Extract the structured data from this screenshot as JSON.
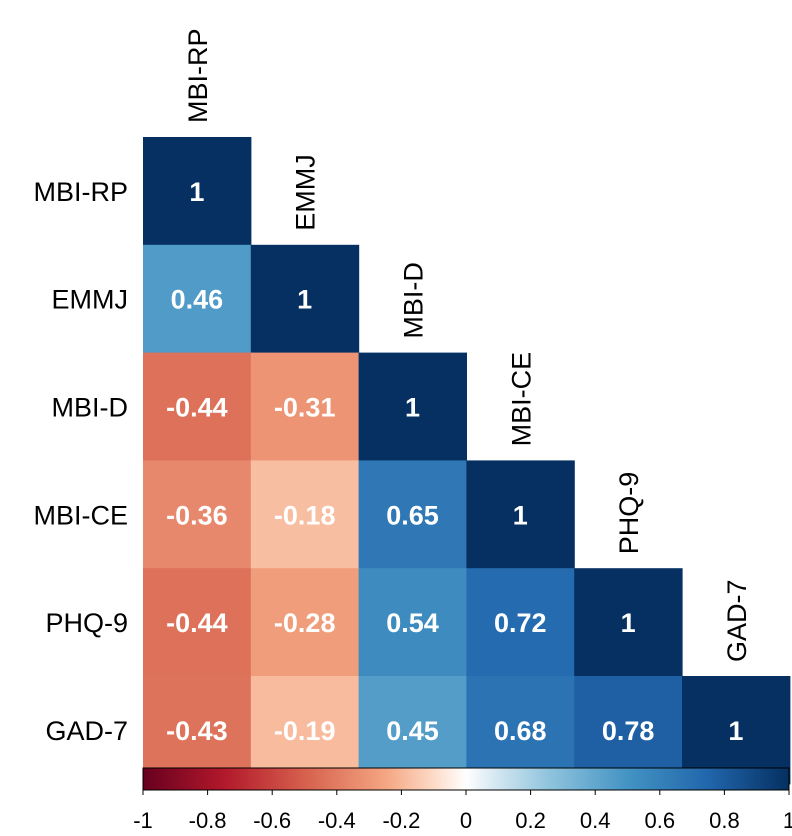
{
  "chart_data": {
    "type": "heatmap",
    "subtype": "lower-triangular correlation matrix",
    "variables": [
      "MBI-RP",
      "EMMJ",
      "MBI-D",
      "MBI-CE",
      "PHQ-9",
      "GAD-7"
    ],
    "matrix": [
      [
        1
      ],
      [
        0.46,
        1
      ],
      [
        -0.44,
        -0.31,
        1
      ],
      [
        -0.36,
        -0.18,
        0.65,
        1
      ],
      [
        -0.44,
        -0.28,
        0.54,
        0.72,
        1
      ],
      [
        -0.43,
        -0.19,
        0.45,
        0.68,
        0.78,
        1
      ]
    ],
    "value_labels": [
      [
        "1"
      ],
      [
        "0.46",
        "1"
      ],
      [
        "-0.44",
        "-0.31",
        "1"
      ],
      [
        "-0.36",
        "-0.18",
        "0.65",
        "1"
      ],
      [
        "-0.44",
        "-0.28",
        "0.54",
        "0.72",
        "1"
      ],
      [
        "-0.43",
        "-0.19",
        "0.45",
        "0.68",
        "0.78",
        "1"
      ]
    ],
    "color_scale": {
      "range": [
        -1,
        1
      ],
      "ticks": [
        -1,
        -0.8,
        -0.6,
        -0.4,
        -0.2,
        0,
        0.2,
        0.4,
        0.6,
        0.8,
        1
      ],
      "tick_labels": [
        "-1",
        "-0.8",
        "-0.6",
        "-0.4",
        "-0.2",
        "0",
        "0.2",
        "0.4",
        "0.6",
        "0.8",
        "1"
      ],
      "stops": [
        {
          "value": -1,
          "color": "#67001F"
        },
        {
          "value": -0.75,
          "color": "#B2182B"
        },
        {
          "value": -0.5,
          "color": "#D6604D"
        },
        {
          "value": -0.25,
          "color": "#F4A582"
        },
        {
          "value": -0.1,
          "color": "#FDDBC7"
        },
        {
          "value": 0,
          "color": "#FFFFFF"
        },
        {
          "value": 0.1,
          "color": "#D1E5F0"
        },
        {
          "value": 0.25,
          "color": "#92C5DE"
        },
        {
          "value": 0.5,
          "color": "#4393C3"
        },
        {
          "value": 0.75,
          "color": "#2166AC"
        },
        {
          "value": 1,
          "color": "#053061"
        }
      ],
      "legend_position": "bottom"
    },
    "title": "",
    "xlabel": "",
    "ylabel": "",
    "grid": false
  }
}
